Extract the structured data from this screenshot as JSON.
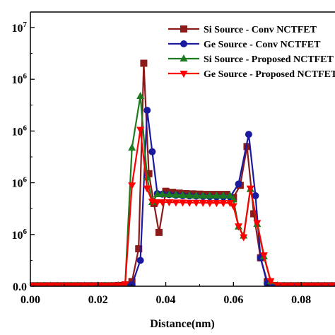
{
  "chart_data": {
    "type": "line",
    "title": "",
    "xlabel": "Distance(nm)",
    "ylabel": "",
    "xlim": [
      0.0,
      0.09
    ],
    "ylim": [
      0,
      10.6
    ],
    "x_ticks": [
      0.0,
      0.02,
      0.04,
      0.06,
      0.08
    ],
    "x_tick_labels": [
      "0.00",
      "0.02",
      "0.04",
      "0.06",
      "0.08"
    ],
    "y_ticks": [
      0,
      2,
      4,
      6,
      8,
      10
    ],
    "y_tick_labels": [
      "0.0",
      "10^6",
      "10^6",
      "10^6",
      "10^6",
      "10^7"
    ],
    "grid": false,
    "legend_position": "top-right",
    "series": [
      {
        "name": "Si Source - Conv NCTFET",
        "color": "#8b1a1a",
        "marker": "square",
        "x": [
          0.0,
          0.002,
          0.004,
          0.006,
          0.008,
          0.01,
          0.012,
          0.014,
          0.016,
          0.018,
          0.02,
          0.022,
          0.024,
          0.026,
          0.028,
          0.03,
          0.032,
          0.0335,
          0.035,
          0.0365,
          0.038,
          0.04,
          0.042,
          0.044,
          0.046,
          0.048,
          0.05,
          0.052,
          0.054,
          0.056,
          0.058,
          0.06,
          0.062,
          0.064,
          0.066,
          0.068,
          0.07,
          0.072,
          0.074,
          0.076,
          0.078,
          0.08,
          0.082,
          0.084,
          0.086,
          0.088,
          0.09
        ],
        "y": [
          0.02,
          0.02,
          0.02,
          0.02,
          0.02,
          0.02,
          0.02,
          0.02,
          0.02,
          0.02,
          0.02,
          0.02,
          0.02,
          0.03,
          0.05,
          0.18,
          1.45,
          8.62,
          4.35,
          3.2,
          2.08,
          3.67,
          3.63,
          3.6,
          3.58,
          3.57,
          3.56,
          3.55,
          3.55,
          3.55,
          3.55,
          3.43,
          3.9,
          5.4,
          2.8,
          1.1,
          0.18,
          0.03,
          0.02,
          0.02,
          0.02,
          0.02,
          0.02,
          0.02,
          0.02,
          0.02,
          0.02
        ]
      },
      {
        "name": "Ge Source - Conv NCTFET",
        "color": "#1a1aa0",
        "marker": "circle",
        "x": [
          0.0,
          0.002,
          0.004,
          0.006,
          0.008,
          0.01,
          0.012,
          0.014,
          0.016,
          0.018,
          0.02,
          0.022,
          0.024,
          0.026,
          0.028,
          0.03,
          0.0325,
          0.0345,
          0.036,
          0.0375,
          0.039,
          0.041,
          0.043,
          0.045,
          0.047,
          0.049,
          0.051,
          0.053,
          0.055,
          0.057,
          0.059,
          0.0615,
          0.0645,
          0.0665,
          0.068,
          0.07,
          0.072,
          0.074,
          0.076,
          0.078,
          0.08,
          0.082,
          0.084,
          0.086,
          0.088,
          0.09
        ],
        "y": [
          0.0,
          0.0,
          0.0,
          0.0,
          0.0,
          0.0,
          0.0,
          0.0,
          0.0,
          0.0,
          0.0,
          0.0,
          0.0,
          0.0,
          0.0,
          0.05,
          1.0,
          6.8,
          5.2,
          3.58,
          3.56,
          3.54,
          3.52,
          3.5,
          3.49,
          3.48,
          3.47,
          3.46,
          3.45,
          3.45,
          3.45,
          3.95,
          5.87,
          3.5,
          1.1,
          0.1,
          0.0,
          0.0,
          0.0,
          0.0,
          0.0,
          0.0,
          0.0,
          0.0,
          0.0,
          0.0
        ]
      },
      {
        "name": "Si Source - Proposed NCTFET",
        "color": "#1e7a1e",
        "marker": "triangle-up",
        "x": [
          0.0,
          0.002,
          0.004,
          0.006,
          0.008,
          0.01,
          0.012,
          0.014,
          0.016,
          0.018,
          0.02,
          0.022,
          0.024,
          0.026,
          0.028,
          0.03,
          0.0325,
          0.0345,
          0.036,
          0.0375,
          0.039,
          0.041,
          0.043,
          0.045,
          0.047,
          0.049,
          0.051,
          0.053,
          0.055,
          0.057,
          0.059,
          0.06,
          0.0615,
          0.063,
          0.065,
          0.067,
          0.069,
          0.071,
          0.073,
          0.075,
          0.077,
          0.079,
          0.081,
          0.083,
          0.085,
          0.087,
          0.089
        ],
        "y": [
          0.02,
          0.02,
          0.02,
          0.02,
          0.02,
          0.02,
          0.02,
          0.02,
          0.02,
          0.02,
          0.02,
          0.02,
          0.02,
          0.03,
          0.05,
          5.35,
          7.35,
          4.2,
          3.25,
          3.55,
          3.55,
          3.54,
          3.53,
          3.52,
          3.51,
          3.5,
          3.5,
          3.5,
          3.5,
          3.5,
          3.5,
          3.35,
          2.3,
          1.95,
          3.75,
          2.4,
          1.15,
          0.18,
          0.03,
          0.02,
          0.02,
          0.02,
          0.02,
          0.02,
          0.02,
          0.02,
          0.02
        ]
      },
      {
        "name": "Ge Source - Proposed NCTFET",
        "color": "#ff0000",
        "marker": "triangle-down",
        "x": [
          0.0,
          0.002,
          0.004,
          0.006,
          0.008,
          0.01,
          0.012,
          0.014,
          0.016,
          0.018,
          0.02,
          0.022,
          0.024,
          0.026,
          0.028,
          0.03,
          0.0325,
          0.0345,
          0.036,
          0.0375,
          0.039,
          0.041,
          0.043,
          0.045,
          0.047,
          0.049,
          0.051,
          0.053,
          0.055,
          0.057,
          0.059,
          0.06,
          0.0615,
          0.063,
          0.065,
          0.067,
          0.069,
          0.071,
          0.073,
          0.075,
          0.077,
          0.079,
          0.081,
          0.083,
          0.085,
          0.087,
          0.089
        ],
        "y": [
          0.02,
          0.02,
          0.02,
          0.02,
          0.02,
          0.02,
          0.02,
          0.02,
          0.02,
          0.02,
          0.02,
          0.02,
          0.02,
          0.03,
          0.08,
          3.9,
          6.05,
          3.78,
          3.27,
          3.25,
          3.25,
          3.25,
          3.24,
          3.24,
          3.23,
          3.23,
          3.23,
          3.22,
          3.22,
          3.22,
          3.22,
          3.1,
          2.32,
          1.9,
          3.78,
          2.45,
          1.2,
          0.2,
          0.04,
          0.02,
          0.02,
          0.02,
          0.02,
          0.02,
          0.02,
          0.02,
          0.02
        ]
      }
    ]
  }
}
